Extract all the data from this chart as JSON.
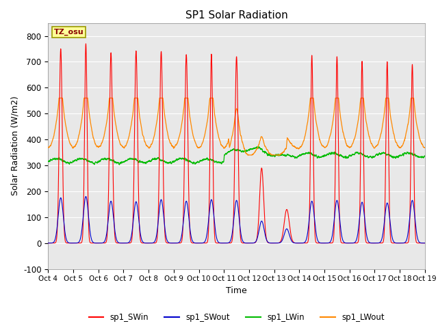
{
  "title": "SP1 Solar Radiation",
  "xlabel": "Time",
  "ylabel": "Solar Radiation (W/m2)",
  "ylim": [
    -100,
    850
  ],
  "xlim": [
    0,
    15
  ],
  "tick_labels": [
    "Oct 4",
    "Oct 5",
    "Oct 6",
    "Oct 7",
    "Oct 8",
    "Oct 9",
    "Oct 10",
    "Oct 11",
    "Oct 12",
    "Oct 13",
    "Oct 14",
    "Oct 15",
    "Oct 16",
    "Oct 17",
    "Oct 18",
    "Oct 19"
  ],
  "annotation_text": "TZ_osu",
  "annotation_color": "#880000",
  "annotation_bg": "#ffff99",
  "annotation_border": "#999900",
  "colors": {
    "sp1_SWin": "#ff0000",
    "sp1_SWout": "#0000cc",
    "sp1_LWin": "#00bb00",
    "sp1_LWout": "#ff8800"
  },
  "legend_labels": [
    "sp1_SWin",
    "sp1_SWout",
    "sp1_LWin",
    "sp1_LWout"
  ],
  "background_color": "#e8e8e8",
  "grid_color": "#ffffff"
}
